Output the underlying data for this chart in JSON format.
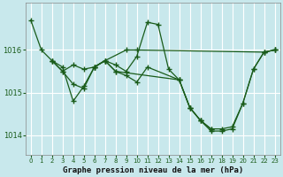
{
  "title": "Graphe pression niveau de la mer (hPa)",
  "bg_color": "#c8e8ec",
  "grid_color": "#ffffff",
  "line_color": "#1a5c1a",
  "ylim": [
    1013.55,
    1017.1
  ],
  "xlim": [
    -0.5,
    23.5
  ],
  "yticks": [
    1014,
    1015,
    1016
  ],
  "xticks": [
    0,
    1,
    2,
    3,
    4,
    5,
    6,
    7,
    8,
    9,
    10,
    11,
    12,
    13,
    14,
    15,
    16,
    17,
    18,
    19,
    20,
    21,
    22,
    23
  ],
  "series": [
    {
      "x": [
        0,
        1,
        2,
        3,
        4,
        5,
        6,
        7,
        9,
        10,
        22,
        23
      ],
      "y": [
        1016.7,
        1016.0,
        1015.75,
        1015.6,
        1014.8,
        1015.15,
        1015.6,
        1015.75,
        1016.0,
        1016.0,
        1015.95,
        1016.0
      ]
    },
    {
      "x": [
        2,
        3,
        4,
        5,
        6,
        7,
        8,
        9,
        10,
        11,
        12,
        13,
        14,
        15,
        16,
        17
      ],
      "y": [
        1015.75,
        1015.5,
        1015.65,
        1015.55,
        1015.6,
        1015.75,
        1015.65,
        1015.5,
        1015.85,
        1016.65,
        1016.6,
        1015.55,
        1015.3,
        1014.65,
        1014.35,
        1014.15
      ]
    },
    {
      "x": [
        2,
        3,
        4,
        5,
        6,
        7,
        8,
        9,
        10,
        11,
        14,
        15,
        16,
        17,
        18,
        19,
        20,
        21,
        22,
        23
      ],
      "y": [
        1015.75,
        1015.5,
        1015.2,
        1015.1,
        1015.6,
        1015.75,
        1015.5,
        1015.4,
        1015.25,
        1015.6,
        1015.3,
        1014.65,
        1014.35,
        1014.15,
        1014.15,
        1014.2,
        1014.75,
        1015.55,
        1015.95,
        1016.0
      ]
    },
    {
      "x": [
        6,
        7,
        8,
        14,
        15,
        16,
        17,
        18,
        19,
        20,
        21,
        22,
        23
      ],
      "y": [
        1015.6,
        1015.75,
        1015.5,
        1015.3,
        1014.65,
        1014.35,
        1014.1,
        1014.1,
        1014.15,
        1014.75,
        1015.55,
        1015.95,
        1016.0
      ]
    }
  ]
}
